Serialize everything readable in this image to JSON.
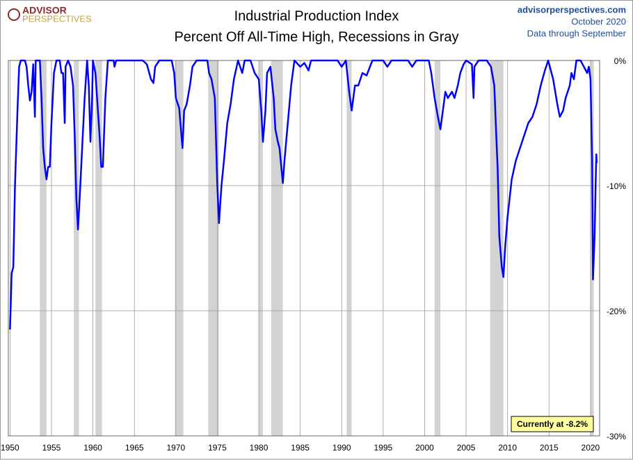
{
  "logo": [
    "ADVISOR",
    "PERSPECTIVES"
  ],
  "source": {
    "site": "advisorperspectives.com",
    "date": "October 2020",
    "note": "Data through September"
  },
  "chart_data": {
    "type": "line",
    "title": "Industrial Production Index",
    "subtitle": "Percent Off All-Time High, Recessions in Gray",
    "annotation": "Currently at -8.2%",
    "color": "#0000ff",
    "recession_color": "#d3d3d3",
    "grid": true,
    "xlim": [
      1949.8,
      2021.1
    ],
    "ylim": [
      -30,
      0
    ],
    "xticks": [
      1950,
      1955,
      1960,
      1965,
      1970,
      1975,
      1980,
      1985,
      1990,
      1995,
      2000,
      2005,
      2010,
      2015,
      2020
    ],
    "yticks": [
      {
        "value": 0,
        "label": "0%"
      },
      {
        "value": -10,
        "label": "-10%"
      },
      {
        "value": -20,
        "label": "-20%"
      },
      {
        "value": -30,
        "label": "-30%"
      }
    ],
    "recessions": [
      [
        1953.6,
        1954.4
      ],
      [
        1957.7,
        1958.3
      ],
      [
        1960.3,
        1961.1
      ],
      [
        1969.9,
        1970.9
      ],
      [
        1973.9,
        1975.2
      ],
      [
        1980.0,
        1980.5
      ],
      [
        1981.5,
        1982.9
      ],
      [
        1990.6,
        1991.2
      ],
      [
        2001.2,
        2001.9
      ],
      [
        2007.9,
        2009.5
      ],
      [
        2020.0,
        2020.4
      ]
    ],
    "x": [
      1950.0,
      1950.2,
      1950.4,
      1950.6,
      1950.9,
      1951.1,
      1951.3,
      1951.8,
      1952.0,
      1952.2,
      1952.4,
      1952.6,
      1952.8,
      1953.0,
      1953.1,
      1953.6,
      1953.8,
      1954.0,
      1954.2,
      1954.4,
      1954.6,
      1954.8,
      1955.0,
      1955.3,
      1955.6,
      1956.0,
      1956.2,
      1956.4,
      1956.6,
      1956.7,
      1957.0,
      1957.3,
      1957.6,
      1957.8,
      1958.0,
      1958.2,
      1958.4,
      1958.7,
      1959.0,
      1959.3,
      1959.5,
      1959.7,
      1959.9,
      1960.0,
      1960.3,
      1960.5,
      1960.8,
      1961.0,
      1961.2,
      1961.5,
      1961.8,
      1962.5,
      1962.6,
      1962.8,
      1965.0,
      1966.0,
      1966.5,
      1967.0,
      1967.3,
      1967.5,
      1968.0,
      1969.5,
      1969.8,
      1970.0,
      1970.4,
      1970.8,
      1971.0,
      1971.3,
      1971.7,
      1972.0,
      1972.5,
      1973.8,
      1974.0,
      1974.3,
      1974.7,
      1975.0,
      1975.2,
      1975.5,
      1975.8,
      1976.2,
      1976.6,
      1977.0,
      1977.5,
      1978.0,
      1978.3,
      1979.0,
      1979.5,
      1980.0,
      1980.3,
      1980.5,
      1980.8,
      1981.0,
      1981.4,
      1981.8,
      1982.0,
      1982.3,
      1982.5,
      1982.9,
      1983.1,
      1983.5,
      1983.9,
      1984.3,
      1985.0,
      1985.5,
      1986.0,
      1986.3,
      1987.0,
      1988.0,
      1989.5,
      1990.0,
      1990.5,
      1990.9,
      1991.2,
      1991.6,
      1992.0,
      1992.5,
      1993.0,
      1993.7,
      1995.0,
      1995.5,
      1996.0,
      1998.0,
      1998.5,
      1999.0,
      2000.5,
      2000.8,
      2001.2,
      2001.6,
      2001.9,
      2002.2,
      2002.5,
      2002.8,
      2003.3,
      2003.6,
      2004.0,
      2004.3,
      2004.7,
      2005.0,
      2005.7,
      2005.9,
      2006.0,
      2006.5,
      2007.5,
      2008.0,
      2008.4,
      2008.7,
      2008.8,
      2009.0,
      2009.3,
      2009.5,
      2009.7,
      2010.0,
      2010.5,
      2011.0,
      2011.5,
      2012.0,
      2012.5,
      2013.0,
      2013.5,
      2014.0,
      2014.5,
      2014.9,
      2015.5,
      2016.0,
      2016.3,
      2016.7,
      2017.0,
      2017.5,
      2017.7,
      2018.0,
      2018.3,
      2018.8,
      2019.2,
      2019.6,
      2019.8,
      2020.0,
      2020.2,
      2020.3,
      2020.5,
      2020.6,
      2020.7,
      2020.75
    ],
    "values": [
      -21.5,
      -17,
      -16.5,
      -10,
      -4,
      -0.5,
      0,
      0,
      -0.5,
      -2,
      -3.2,
      -2.5,
      -0.3,
      -4.5,
      0,
      0,
      -3,
      -7,
      -8.5,
      -9.5,
      -8.5,
      -8.5,
      -5,
      -1,
      0,
      0,
      -1,
      -1,
      -5,
      -0.5,
      0,
      -0.5,
      -2,
      -6,
      -11,
      -13.5,
      -11,
      -7,
      -3,
      0,
      -2,
      -6.5,
      -3,
      0,
      -1,
      -3,
      -6,
      -8.5,
      -8.5,
      -3,
      0,
      0,
      -0.5,
      0,
      0,
      0,
      -0.3,
      -1.5,
      -1.8,
      -0.5,
      0,
      0,
      -1,
      -3,
      -3.8,
      -7,
      -4,
      -3.5,
      -2,
      -0.5,
      0,
      0,
      -1,
      -1.5,
      -3,
      -10,
      -13,
      -10,
      -8,
      -5,
      -3.5,
      -1.5,
      0,
      -1,
      0,
      0,
      -1,
      -1.5,
      -4,
      -6.5,
      -4,
      -1,
      -0.5,
      -3,
      -5.5,
      -6.5,
      -7,
      -9.8,
      -8,
      -5,
      -2,
      0,
      -0.5,
      -0.2,
      -0.8,
      0,
      0,
      0,
      0,
      -0.5,
      0,
      -2.5,
      -4,
      -2,
      -2,
      -1,
      -1.2,
      0,
      0,
      -0.5,
      0,
      0,
      -0.5,
      0,
      0,
      -1,
      -3,
      -4.5,
      -5.5,
      -4,
      -2.5,
      -3,
      -2.5,
      -3,
      -2,
      -1,
      -0.3,
      0,
      -0.3,
      -3,
      -0.5,
      0,
      0,
      -0.5,
      -2,
      -7,
      -8.5,
      -14,
      -16.5,
      -17.3,
      -15,
      -12.5,
      -9.5,
      -8,
      -7,
      -6,
      -5,
      -4.5,
      -3.5,
      -2,
      -0.8,
      0,
      -1.5,
      -3.5,
      -4.5,
      -4,
      -3,
      -2,
      -1,
      -1.5,
      0,
      0,
      -0.5,
      -1,
      -0.5,
      -1.5,
      -8,
      -17.5,
      -14,
      -10.5,
      -7.5,
      -8.2
    ]
  }
}
